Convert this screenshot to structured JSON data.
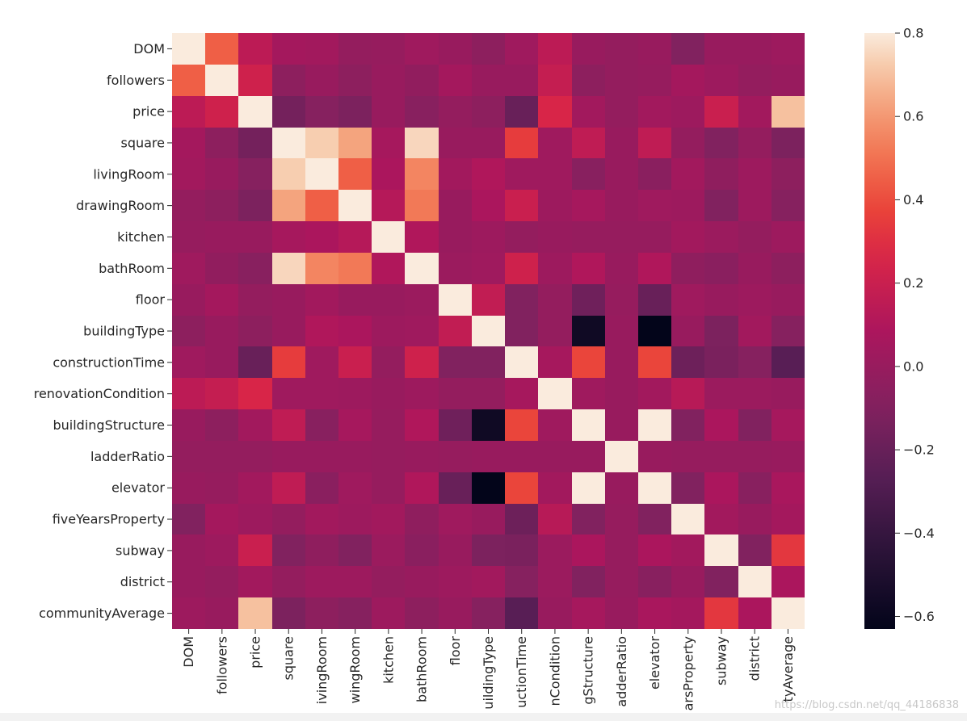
{
  "chart_data": {
    "type": "heatmap",
    "title": "",
    "xlabel": "",
    "ylabel": "",
    "labels": [
      "DOM",
      "followers",
      "price",
      "square",
      "livingRoom",
      "drawingRoom",
      "kitchen",
      "bathRoom",
      "floor",
      "buildingType",
      "constructionTime",
      "renovationCondition",
      "buildingStructure",
      "ladderRatio",
      "elevator",
      "fiveYearsProperty",
      "subway",
      "district",
      "communityAverage"
    ],
    "values": [
      [
        0.8,
        0.45,
        0.15,
        0.05,
        0.04,
        -0.02,
        -0.01,
        0.03,
        0.0,
        -0.05,
        0.03,
        0.15,
        0.0,
        -0.02,
        0.0,
        -0.1,
        0.0,
        0.0,
        0.02
      ],
      [
        0.45,
        0.8,
        0.22,
        -0.05,
        0.0,
        -0.05,
        0.0,
        -0.03,
        0.05,
        0.0,
        0.0,
        0.18,
        -0.05,
        -0.02,
        -0.01,
        0.05,
        0.02,
        -0.02,
        0.0
      ],
      [
        0.15,
        0.22,
        0.8,
        -0.15,
        -0.08,
        -0.12,
        0.0,
        -0.07,
        -0.02,
        -0.05,
        -0.2,
        0.26,
        0.04,
        -0.02,
        0.04,
        0.02,
        0.2,
        0.04,
        0.7
      ],
      [
        0.05,
        -0.05,
        -0.15,
        0.8,
        0.73,
        0.63,
        0.06,
        0.75,
        0.0,
        0.0,
        0.35,
        0.03,
        0.16,
        0.0,
        0.16,
        -0.02,
        -0.1,
        -0.02,
        -0.12
      ],
      [
        0.04,
        0.0,
        -0.08,
        0.73,
        0.8,
        0.45,
        0.08,
        0.55,
        0.04,
        0.1,
        0.03,
        0.03,
        -0.07,
        0.0,
        -0.06,
        0.04,
        -0.04,
        0.02,
        -0.05
      ],
      [
        -0.02,
        -0.05,
        -0.12,
        0.63,
        0.45,
        0.8,
        0.12,
        0.52,
        0.0,
        0.08,
        0.2,
        0.02,
        0.06,
        0.0,
        0.03,
        0.02,
        -0.1,
        0.02,
        -0.08
      ],
      [
        -0.01,
        0.0,
        0.0,
        0.06,
        0.08,
        0.12,
        0.8,
        0.1,
        0.0,
        0.02,
        -0.02,
        0.0,
        -0.01,
        -0.01,
        -0.01,
        0.04,
        0.01,
        -0.02,
        0.02
      ],
      [
        0.03,
        -0.03,
        -0.07,
        0.75,
        0.55,
        0.52,
        0.1,
        0.8,
        0.01,
        0.03,
        0.22,
        0.02,
        0.1,
        0.0,
        0.1,
        -0.04,
        -0.06,
        0.0,
        -0.05
      ],
      [
        0.0,
        0.05,
        -0.02,
        0.0,
        0.04,
        0.0,
        0.0,
        0.01,
        0.8,
        0.17,
        -0.1,
        -0.02,
        -0.17,
        -0.01,
        -0.2,
        0.03,
        0.0,
        0.02,
        0.0
      ],
      [
        -0.05,
        0.0,
        -0.05,
        0.0,
        0.1,
        0.08,
        0.02,
        0.03,
        0.17,
        0.8,
        -0.1,
        -0.02,
        -0.57,
        0.0,
        -0.63,
        0.0,
        -0.12,
        0.04,
        -0.08
      ],
      [
        0.03,
        0.0,
        -0.2,
        0.35,
        0.03,
        0.2,
        -0.02,
        0.22,
        -0.1,
        -0.1,
        0.8,
        0.06,
        0.38,
        0.0,
        0.38,
        -0.18,
        -0.13,
        -0.08,
        -0.26
      ],
      [
        0.15,
        0.18,
        0.26,
        0.03,
        0.03,
        0.02,
        0.0,
        0.02,
        -0.02,
        -0.02,
        0.06,
        0.8,
        0.03,
        0.0,
        0.04,
        0.13,
        0.01,
        0.01,
        0.0
      ],
      [
        0.0,
        -0.05,
        0.04,
        0.16,
        -0.07,
        0.06,
        -0.01,
        0.1,
        -0.17,
        -0.57,
        0.38,
        0.03,
        0.8,
        0.0,
        0.8,
        -0.1,
        0.08,
        -0.1,
        0.06
      ],
      [
        -0.02,
        -0.02,
        -0.02,
        0.0,
        0.0,
        0.0,
        -0.01,
        0.0,
        -0.01,
        0.0,
        0.0,
        0.0,
        0.0,
        0.8,
        0.0,
        -0.01,
        -0.01,
        -0.01,
        0.0
      ],
      [
        0.0,
        -0.01,
        0.04,
        0.16,
        -0.06,
        0.03,
        -0.01,
        0.1,
        -0.2,
        -0.63,
        0.38,
        0.04,
        0.8,
        0.0,
        0.8,
        -0.1,
        0.08,
        -0.07,
        0.07
      ],
      [
        -0.1,
        0.05,
        0.02,
        -0.02,
        0.04,
        0.02,
        0.04,
        -0.04,
        0.03,
        0.0,
        -0.18,
        0.13,
        -0.1,
        -0.01,
        -0.1,
        0.8,
        0.04,
        0.0,
        0.05
      ],
      [
        0.0,
        0.02,
        0.2,
        -0.1,
        -0.04,
        -0.1,
        0.01,
        -0.06,
        0.0,
        -0.12,
        -0.13,
        0.01,
        0.08,
        -0.01,
        0.08,
        0.04,
        0.8,
        -0.1,
        0.33
      ],
      [
        0.0,
        -0.02,
        0.04,
        -0.02,
        0.02,
        0.02,
        -0.02,
        0.0,
        0.02,
        0.04,
        -0.08,
        0.01,
        -0.1,
        -0.01,
        -0.07,
        0.0,
        -0.1,
        0.8,
        0.08
      ],
      [
        0.02,
        0.0,
        0.7,
        -0.12,
        -0.05,
        -0.08,
        0.02,
        -0.05,
        0.0,
        -0.08,
        -0.26,
        0.0,
        0.06,
        0.0,
        0.07,
        0.05,
        0.33,
        0.08,
        0.8
      ]
    ],
    "vmin": -0.63,
    "vmax": 0.8,
    "colormap": "rocket",
    "colorbar": {
      "ticks": [
        0.8,
        0.6,
        0.4,
        0.2,
        0.0,
        -0.2,
        -0.4,
        -0.6
      ],
      "tick_labels": [
        "0.8",
        "0.6",
        "0.4",
        "0.2",
        "0.0",
        "−0.2",
        "−0.4",
        "−0.6"
      ]
    },
    "x_tick_labels": [
      "DOM",
      "followers",
      "price",
      "square",
      "ivingRoom",
      "wingRoom",
      "kitchen",
      "bathRoom",
      "floor",
      "uildingType",
      "uctionTime",
      "nCondition",
      "gStructure",
      "adderRatio",
      "elevator",
      "arsProperty",
      "subway",
      "district",
      "tyAverage"
    ],
    "y_tick_labels": [
      "DOM",
      "followers",
      "price",
      "square",
      "livingRoom",
      "drawingRoom",
      "kitchen",
      "bathRoom",
      "floor",
      "buildingType",
      "constructionTime",
      "renovationCondition",
      "buildingStructure",
      "ladderRatio",
      "elevator",
      "fiveYearsProperty",
      "subway",
      "district",
      "communityAverage"
    ],
    "grid": false,
    "legend": "colorbar-right"
  },
  "watermark": "https://blog.csdn.net/qq_44186838"
}
